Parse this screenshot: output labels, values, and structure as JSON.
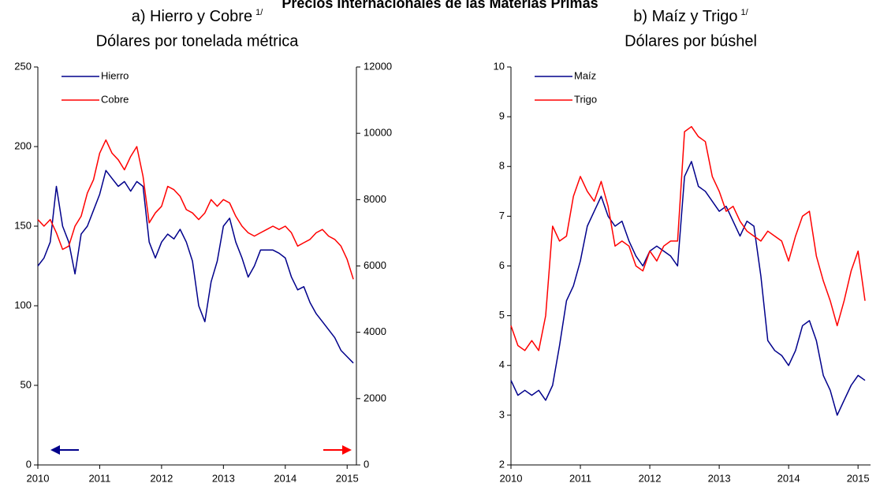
{
  "title": "Precios Internacionales de las Materias Primas",
  "chart_data": [
    {
      "type": "line",
      "title": "a) Hierro y Cobre",
      "title_note": "1/",
      "subtitle": "Dólares por tonelada métrica",
      "legend": "upper left",
      "x": [
        2010.0,
        2010.1,
        2010.2,
        2010.3,
        2010.4,
        2010.5,
        2010.6,
        2010.7,
        2010.8,
        2010.9,
        2011.0,
        2011.1,
        2011.2,
        2011.3,
        2011.4,
        2011.5,
        2011.6,
        2011.7,
        2011.8,
        2011.9,
        2012.0,
        2012.1,
        2012.2,
        2012.3,
        2012.4,
        2012.5,
        2012.6,
        2012.7,
        2012.8,
        2012.9,
        2013.0,
        2013.1,
        2013.2,
        2013.3,
        2013.4,
        2013.5,
        2013.6,
        2013.7,
        2013.8,
        2013.9,
        2014.0,
        2014.1,
        2014.2,
        2014.3,
        2014.4,
        2014.5,
        2014.6,
        2014.7,
        2014.8,
        2014.9,
        2015.0,
        2015.1
      ],
      "xlim": [
        2010,
        2015.15
      ],
      "xticks": [
        2010,
        2011,
        2012,
        2013,
        2014,
        2015
      ],
      "ylim": [
        0,
        250
      ],
      "yticks": [
        0,
        50,
        100,
        150,
        200,
        250
      ],
      "y2lim": [
        0,
        12000
      ],
      "y2ticks": [
        0,
        2000,
        4000,
        6000,
        8000,
        10000,
        12000
      ],
      "series": [
        {
          "name": "Hierro",
          "color": "#00008b",
          "values": [
            125,
            130,
            140,
            175,
            150,
            140,
            120,
            145,
            150,
            160,
            170,
            185,
            180,
            175,
            178,
            172,
            178,
            175,
            140,
            130,
            140,
            145,
            142,
            148,
            140,
            128,
            100,
            90,
            115,
            128,
            150,
            155,
            140,
            130,
            118,
            125,
            135,
            135,
            135,
            133,
            130,
            118,
            110,
            112,
            102,
            95,
            90,
            85,
            80,
            72,
            68,
            64
          ]
        },
        {
          "name": "Cobre",
          "color": "#ff0000",
          "axis": "y2",
          "values": [
            7400,
            7200,
            7400,
            7000,
            6500,
            6600,
            7200,
            7500,
            8200,
            8600,
            9400,
            9800,
            9400,
            9200,
            8900,
            9300,
            9600,
            8700,
            7300,
            7600,
            7800,
            8400,
            8300,
            8100,
            7700,
            7600,
            7400,
            7600,
            8000,
            7800,
            8000,
            7900,
            7500,
            7200,
            7000,
            6900,
            7000,
            7100,
            7200,
            7100,
            7200,
            7000,
            6600,
            6700,
            6800,
            7000,
            7100,
            6900,
            6800,
            6600,
            6200,
            5600
          ]
        }
      ]
    },
    {
      "type": "line",
      "title": "b) Maíz y Trigo",
      "title_note": "1/",
      "subtitle": "Dólares por búshel",
      "legend": "upper left",
      "x": [
        2010.0,
        2010.1,
        2010.2,
        2010.3,
        2010.4,
        2010.5,
        2010.6,
        2010.7,
        2010.8,
        2010.9,
        2011.0,
        2011.1,
        2011.2,
        2011.3,
        2011.4,
        2011.5,
        2011.6,
        2011.7,
        2011.8,
        2011.9,
        2012.0,
        2012.1,
        2012.2,
        2012.3,
        2012.4,
        2012.5,
        2012.6,
        2012.7,
        2012.8,
        2012.9,
        2013.0,
        2013.1,
        2013.2,
        2013.3,
        2013.4,
        2013.5,
        2013.6,
        2013.7,
        2013.8,
        2013.9,
        2014.0,
        2014.1,
        2014.2,
        2014.3,
        2014.4,
        2014.5,
        2014.6,
        2014.7,
        2014.8,
        2014.9,
        2015.0,
        2015.1
      ],
      "xlim": [
        2010,
        2015.18
      ],
      "xticks": [
        2010,
        2011,
        2012,
        2013,
        2014,
        2015
      ],
      "ylim": [
        2,
        10
      ],
      "yticks": [
        2,
        3,
        4,
        5,
        6,
        7,
        8,
        9,
        10
      ],
      "series": [
        {
          "name": "Maíz",
          "color": "#00008b",
          "values": [
            3.7,
            3.4,
            3.5,
            3.4,
            3.5,
            3.3,
            3.6,
            4.4,
            5.3,
            5.6,
            6.1,
            6.8,
            7.1,
            7.4,
            7.0,
            6.8,
            6.9,
            6.5,
            6.2,
            6.0,
            6.3,
            6.4,
            6.3,
            6.2,
            6.0,
            7.8,
            8.1,
            7.6,
            7.5,
            7.3,
            7.1,
            7.2,
            6.9,
            6.6,
            6.9,
            6.8,
            5.8,
            4.5,
            4.3,
            4.2,
            4.0,
            4.3,
            4.8,
            4.9,
            4.5,
            3.8,
            3.5,
            3.0,
            3.3,
            3.6,
            3.8,
            3.7
          ]
        },
        {
          "name": "Trigo",
          "color": "#ff0000",
          "values": [
            4.8,
            4.4,
            4.3,
            4.5,
            4.3,
            5.0,
            6.8,
            6.5,
            6.6,
            7.4,
            7.8,
            7.5,
            7.3,
            7.7,
            7.2,
            6.4,
            6.5,
            6.4,
            6.0,
            5.9,
            6.3,
            6.1,
            6.4,
            6.5,
            6.5,
            8.7,
            8.8,
            8.6,
            8.5,
            7.8,
            7.5,
            7.1,
            7.2,
            6.9,
            6.7,
            6.6,
            6.5,
            6.7,
            6.6,
            6.5,
            6.1,
            6.6,
            7.0,
            7.1,
            6.2,
            5.7,
            5.3,
            4.8,
            5.3,
            5.9,
            6.3,
            5.3
          ]
        }
      ]
    }
  ]
}
